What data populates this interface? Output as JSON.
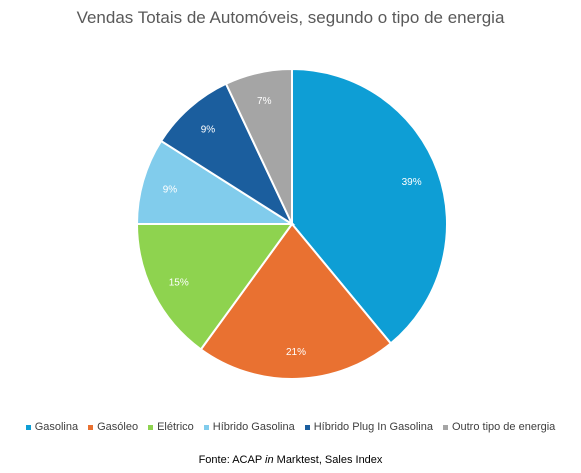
{
  "chart_data": {
    "type": "pie",
    "title": "Vendas Totais de Automóveis, segundo o tipo de energia",
    "slices": [
      {
        "label": "Gasolina",
        "value": 39,
        "data_label": "39%",
        "color": "#0E9ED5"
      },
      {
        "label": "Gasóleo",
        "value": 21,
        "data_label": "21%",
        "color": "#E97131"
      },
      {
        "label": "Elétrico",
        "value": 15,
        "data_label": "15%",
        "color": "#8ED34F"
      },
      {
        "label": "Híbrido Gasolina",
        "value": 9,
        "data_label": "9%",
        "color": "#81CCEC"
      },
      {
        "label": "Híbrido Plug In Gasolina",
        "value": 9,
        "data_label": "9%",
        "color": "#1B5E9E"
      },
      {
        "label": "Outro tipo de energia",
        "value": 7,
        "data_label": "7%",
        "color": "#A5A5A5"
      }
    ],
    "legend_position": "bottom"
  },
  "source": {
    "prefix": "Fonte: ACAP ",
    "italic": "in",
    "suffix": " Marktest, Sales Index"
  }
}
